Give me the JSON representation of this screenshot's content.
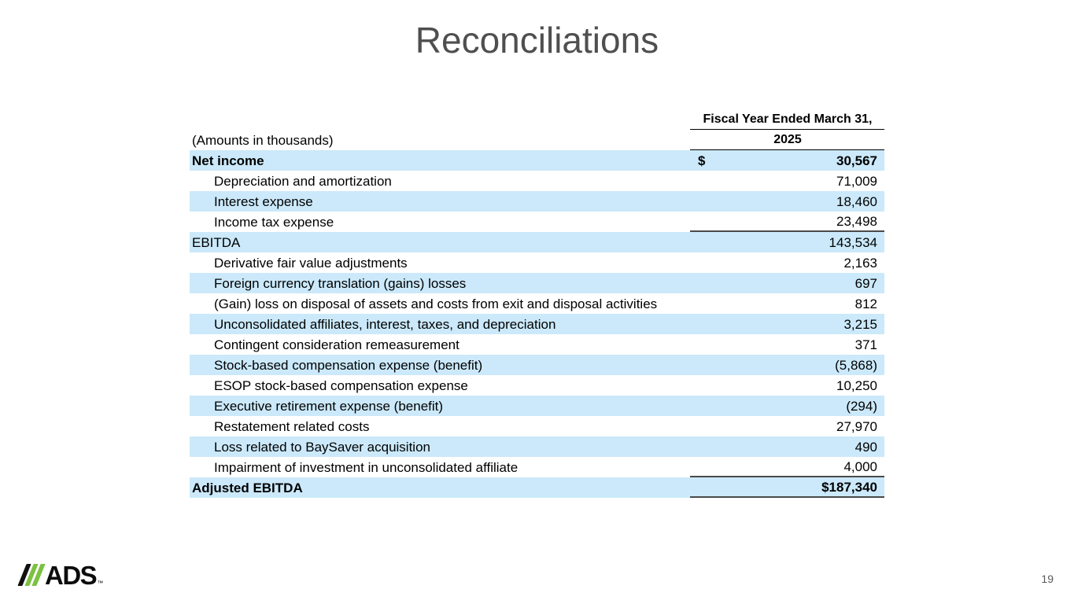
{
  "slide": {
    "title": "Reconciliations",
    "page_number": "19",
    "logo": {
      "text": "ADS",
      "trademark": "™",
      "slash_colors": [
        "#111111",
        "#7cc142",
        "#7cc142"
      ],
      "text_color": "#0c0c0c"
    }
  },
  "table": {
    "note": "(Amounts in thousands)",
    "header": {
      "line1": "Fiscal Year Ended March 31,",
      "line2": "2025"
    },
    "currency_symbol": "$",
    "shade_color": "#cbe9fa",
    "rows": [
      {
        "label": "Net income",
        "value": "30,567",
        "indent": false,
        "bold": true,
        "shaded": true,
        "show_currency": true,
        "rule_below": false
      },
      {
        "label": "Depreciation and amortization",
        "value": "71,009",
        "indent": true,
        "bold": false,
        "shaded": false,
        "show_currency": false,
        "rule_below": false
      },
      {
        "label": "Interest expense",
        "value": "18,460",
        "indent": true,
        "bold": false,
        "shaded": true,
        "show_currency": false,
        "rule_below": false
      },
      {
        "label": "Income tax expense",
        "value": "23,498",
        "indent": true,
        "bold": false,
        "shaded": false,
        "show_currency": false,
        "rule_below": true
      },
      {
        "label": "EBITDA",
        "value": "143,534",
        "indent": false,
        "bold": false,
        "shaded": true,
        "show_currency": false,
        "rule_below": false
      },
      {
        "label": "Derivative fair value adjustments",
        "value": "2,163",
        "indent": true,
        "bold": false,
        "shaded": false,
        "show_currency": false,
        "rule_below": false
      },
      {
        "label": "Foreign currency translation (gains) losses",
        "value": "697",
        "indent": true,
        "bold": false,
        "shaded": true,
        "show_currency": false,
        "rule_below": false
      },
      {
        "label": "(Gain) loss on disposal of assets and costs from exit and disposal activities",
        "value": "812",
        "indent": true,
        "bold": false,
        "shaded": false,
        "show_currency": false,
        "rule_below": false
      },
      {
        "label": "Unconsolidated affiliates, interest, taxes, and depreciation",
        "value": "3,215",
        "indent": true,
        "bold": false,
        "shaded": true,
        "show_currency": false,
        "rule_below": false
      },
      {
        "label": "Contingent consideration remeasurement",
        "value": "371",
        "indent": true,
        "bold": false,
        "shaded": false,
        "show_currency": false,
        "rule_below": false
      },
      {
        "label": "Stock-based compensation expense (benefit)",
        "value": "(5,868)",
        "indent": true,
        "bold": false,
        "shaded": true,
        "show_currency": false,
        "rule_below": false
      },
      {
        "label": "ESOP stock-based compensation expense",
        "value": "10,250",
        "indent": true,
        "bold": false,
        "shaded": false,
        "show_currency": false,
        "rule_below": false
      },
      {
        "label": "Executive retirement expense (benefit)",
        "value": "(294)",
        "indent": true,
        "bold": false,
        "shaded": true,
        "show_currency": false,
        "rule_below": false
      },
      {
        "label": "Restatement related costs",
        "value": "27,970",
        "indent": true,
        "bold": false,
        "shaded": false,
        "show_currency": false,
        "rule_below": false
      },
      {
        "label": "Loss related to BaySaver acquisition",
        "value": "490",
        "indent": true,
        "bold": false,
        "shaded": true,
        "show_currency": false,
        "rule_below": false
      },
      {
        "label": "Impairment of investment in unconsolidated affiliate",
        "value": "4,000",
        "indent": true,
        "bold": false,
        "shaded": false,
        "show_currency": false,
        "rule_below": true
      },
      {
        "label": "Adjusted EBITDA",
        "value": "$187,340",
        "indent": false,
        "bold": true,
        "shaded": true,
        "show_currency": false,
        "rule_below": true
      }
    ]
  }
}
